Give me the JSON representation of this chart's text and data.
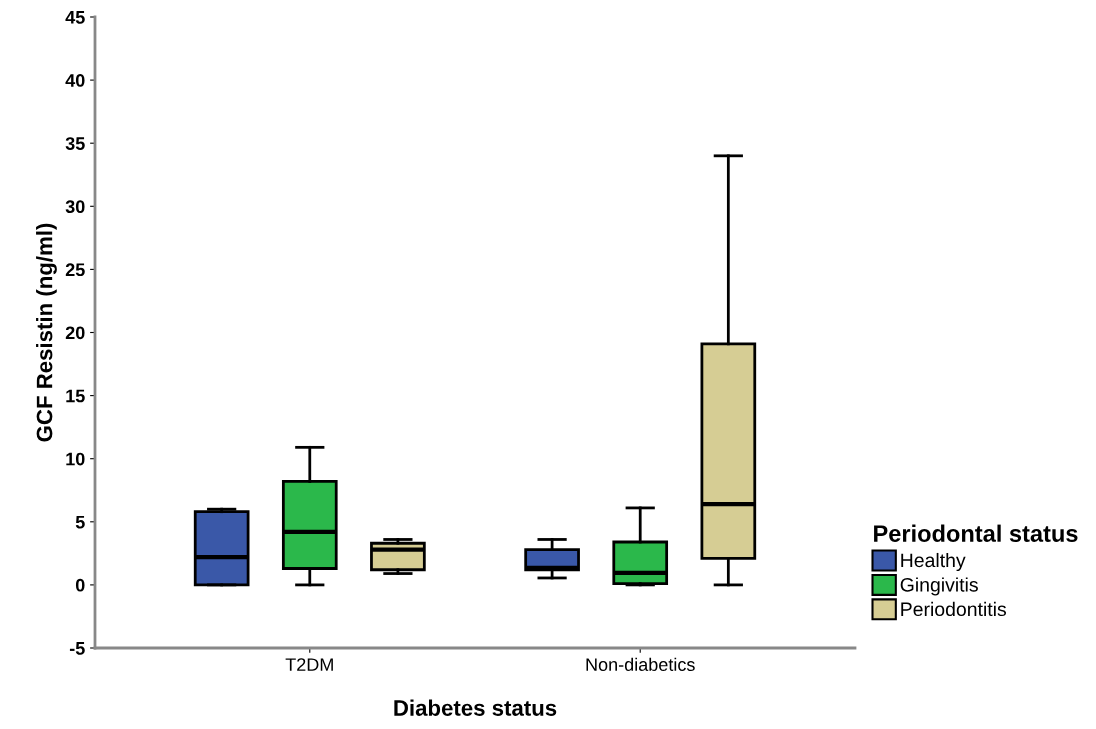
{
  "chart_data": {
    "type": "box",
    "xlabel": "Diabetes status",
    "ylabel": "GCF Resistin (ng/ml)",
    "legend_title": "Periodontal status",
    "categories": [
      "T2DM",
      "Non-diabetics"
    ],
    "ylim": [
      -5,
      45
    ],
    "yticks": [
      -5,
      0,
      5,
      10,
      15,
      20,
      25,
      30,
      35,
      40,
      45
    ],
    "legend": "right",
    "grid": false,
    "series": [
      {
        "name": "Healthy",
        "color": "#3a58a8",
        "boxes": [
          {
            "low": 0,
            "q1": 0,
            "median": 2.2,
            "q3": 5.8,
            "high": 6.0
          },
          {
            "low": 0.55,
            "q1": 1.2,
            "median": 1.35,
            "q3": 2.8,
            "high": 3.6
          }
        ]
      },
      {
        "name": "Gingivitis",
        "color": "#2bb84b",
        "boxes": [
          {
            "low": 0,
            "q1": 1.3,
            "median": 4.2,
            "q3": 8.2,
            "high": 10.9
          },
          {
            "low": 0,
            "q1": 0.1,
            "median": 0.95,
            "q3": 3.4,
            "high": 6.1
          }
        ]
      },
      {
        "name": "Periodontitis",
        "color": "#d6cd94",
        "boxes": [
          {
            "low": 0.9,
            "q1": 1.2,
            "median": 2.8,
            "q3": 3.3,
            "high": 3.6
          },
          {
            "low": 0,
            "q1": 2.1,
            "median": 6.4,
            "q3": 19.1,
            "high": 34.0
          }
        ]
      }
    ]
  }
}
